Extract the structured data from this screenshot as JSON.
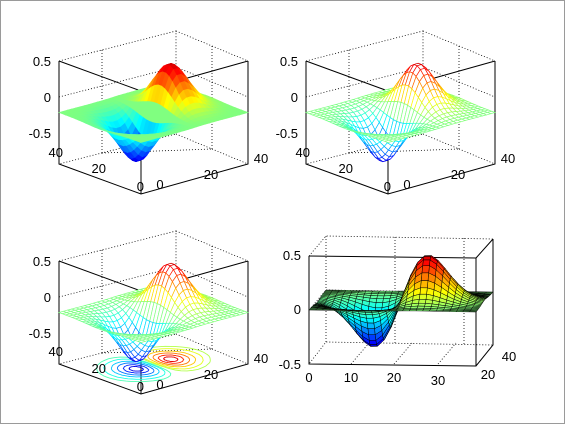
{
  "chart_data": [
    {
      "type": "surface",
      "style": "interp",
      "x_ticks": [
        "0",
        "20",
        "40"
      ],
      "y_ticks": [
        "0",
        "20",
        "40"
      ],
      "z_ticks": [
        "0.5",
        "0",
        "-0.5"
      ],
      "xlim": [
        0,
        40
      ],
      "ylim": [
        0,
        40
      ],
      "zlim": [
        -0.5,
        0.5
      ],
      "grid": true,
      "colormap": "jet"
    },
    {
      "type": "mesh",
      "x_ticks": [
        "0",
        "20",
        "40"
      ],
      "y_ticks": [
        "0",
        "20",
        "40"
      ],
      "z_ticks": [
        "0.5",
        "0",
        "-0.5"
      ],
      "xlim": [
        0,
        40
      ],
      "ylim": [
        0,
        40
      ],
      "zlim": [
        -0.5,
        0.5
      ],
      "grid": true,
      "colormap": "jet"
    },
    {
      "type": "meshc",
      "x_ticks": [
        "0",
        "20",
        "40"
      ],
      "y_ticks": [
        "0",
        "20",
        "40"
      ],
      "z_ticks": [
        "0.5",
        "0",
        "-0.5"
      ],
      "xlim": [
        0,
        40
      ],
      "ylim": [
        0,
        40
      ],
      "zlim": [
        -0.5,
        0.5
      ],
      "grid": true,
      "colormap": "jet",
      "contour_below": true
    },
    {
      "type": "surf",
      "x_ticks": [
        "0",
        "10",
        "20",
        "30"
      ],
      "y_ticks": [
        "20",
        "40"
      ],
      "z_ticks": [
        "0.5",
        "0",
        "-0.5"
      ],
      "xlim": [
        0,
        30
      ],
      "ylim": [
        0,
        40
      ],
      "zlim": [
        -0.5,
        0.5
      ],
      "grid": true,
      "colormap": "jet",
      "edge_color": "#000000"
    }
  ]
}
